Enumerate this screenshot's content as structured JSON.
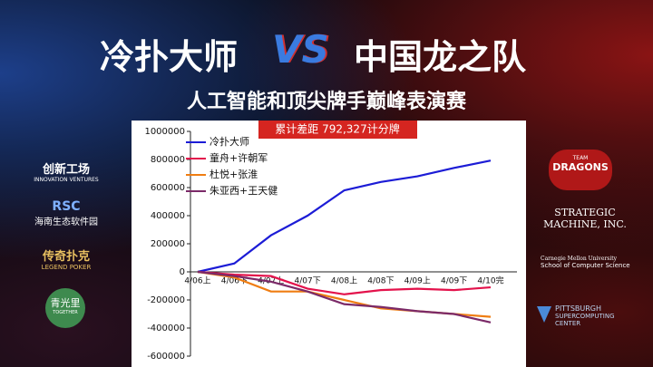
{
  "header": {
    "title_left": "冷扑大师",
    "title_vs": "VS",
    "title_right": "中国龙之队",
    "subtitle": "人工智能和顶尖牌手巅峰表演赛",
    "badge": "累计差距 792,327计分牌"
  },
  "sponsors_left": [
    {
      "name": "创新工场",
      "sub": "INNOVATION VENTURES"
    },
    {
      "name": "RSC",
      "sub": "海南生态软件园"
    },
    {
      "name": "传奇扑克",
      "sub": "LEGEND POKER"
    },
    {
      "name": "青光里",
      "sub": "TOGETHER"
    }
  ],
  "sponsors_right": [
    {
      "name": "DRAGONS",
      "sub": "TEAM"
    },
    {
      "name": "STRATEGIC",
      "sub": "MACHINE, INC."
    },
    {
      "name": "Carnegie Mellon University",
      "sub": "School of Computer Science"
    },
    {
      "name": "PITTSBURGH",
      "sub": "SUPERCOMPUTING CENTER"
    }
  ],
  "chart_data": {
    "type": "line",
    "categories": [
      "4/06上",
      "4/06下",
      "4/07上",
      "4/07下",
      "4/08上",
      "4/08下",
      "4/09上",
      "4/09下",
      "4/10完"
    ],
    "series": [
      {
        "name": "冷扑大师",
        "color": "#1c1cd6",
        "values": [
          0,
          60000,
          260000,
          400000,
          580000,
          640000,
          680000,
          740000,
          792327
        ]
      },
      {
        "name": "童舟+许朝军",
        "color": "#e3124b",
        "values": [
          0,
          -20000,
          -30000,
          -120000,
          -160000,
          -130000,
          -120000,
          -130000,
          -110000
        ]
      },
      {
        "name": "杜悦+张淮",
        "color": "#ef7d12",
        "values": [
          0,
          -40000,
          -140000,
          -140000,
          -200000,
          -260000,
          -280000,
          -300000,
          -320000
        ]
      },
      {
        "name": "朱亚西+王天健",
        "color": "#7b2a68",
        "values": [
          0,
          -30000,
          -70000,
          -140000,
          -230000,
          -250000,
          -280000,
          -300000,
          -360000
        ]
      }
    ],
    "ylim": [
      -600000,
      1000000
    ],
    "yticks": [
      -600000,
      -400000,
      -200000,
      0,
      200000,
      400000,
      600000,
      800000,
      1000000
    ],
    "legend": "upper-left",
    "grid": false
  }
}
